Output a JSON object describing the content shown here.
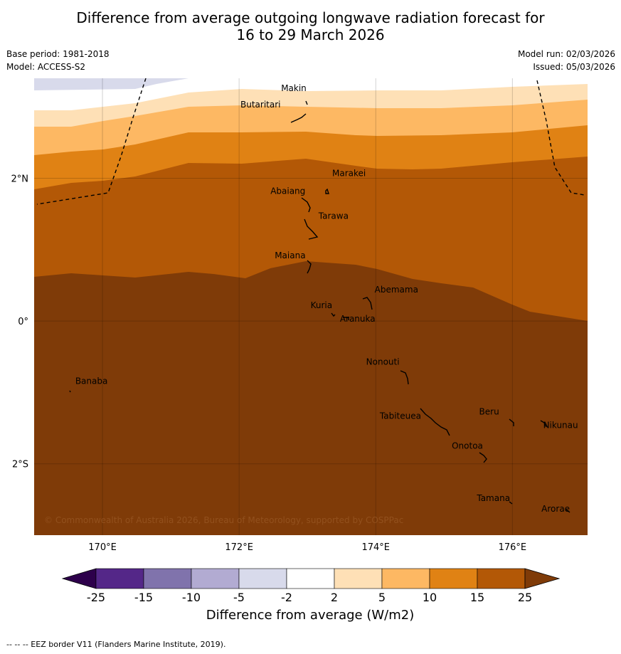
{
  "title_line1": "Difference from average outgoing longwave radiation forecast for",
  "title_line2": "16 to 29 March 2026",
  "base_period": "Base period: 1981-2018",
  "model": "Model: ACCESS-S2",
  "model_run": "Model run: 02/03/2026",
  "issued": "Issued: 05/03/2026",
  "copyright": "© Commonwealth of Australia 2026, Bureau of Meteorology, supported by COSPPac",
  "colorbar_label": "Difference from average (W/m2)",
  "footer": "--  --  -- EEZ border V11 (Flanders Marine Institute, 2019).",
  "map": {
    "lon_range": [
      169,
      177.1
    ],
    "lat_range": [
      -3.0,
      3.4
    ],
    "lon_ticks": [
      {
        "value": 170,
        "label": "170°E"
      },
      {
        "value": 172,
        "label": "172°E"
      },
      {
        "value": 174,
        "label": "174°E"
      },
      {
        "value": 176,
        "label": "176°E"
      }
    ],
    "lat_ticks": [
      {
        "value": 2,
        "label": "2°N"
      },
      {
        "value": 0,
        "label": "0°"
      },
      {
        "value": -2,
        "label": "2°S"
      }
    ]
  },
  "islands": [
    {
      "name": "Makin",
      "lon": 173.0,
      "lat": 3.22
    },
    {
      "name": "Butaritari",
      "lon": 172.8,
      "lat": 3.07
    },
    {
      "name": "Marakei",
      "lon": 173.3,
      "lat": 2.0
    },
    {
      "name": "Abaiang",
      "lon": 173.0,
      "lat": 1.85
    },
    {
      "name": "Tarawa",
      "lon": 173.1,
      "lat": 1.45
    },
    {
      "name": "Maiana",
      "lon": 173.0,
      "lat": 0.92
    },
    {
      "name": "Abemama",
      "lon": 173.9,
      "lat": 0.4
    },
    {
      "name": "Kuria",
      "lon": 173.4,
      "lat": 0.22
    },
    {
      "name": "Aranuka",
      "lon": 173.6,
      "lat": 0.17
    },
    {
      "name": "Nonouti",
      "lon": 174.4,
      "lat": -0.65
    },
    {
      "name": "Banaba",
      "lon": 169.55,
      "lat": -0.86
    },
    {
      "name": "Tabiteuea",
      "lon": 174.85,
      "lat": -1.35
    },
    {
      "name": "Beru",
      "lon": 175.95,
      "lat": -1.33
    },
    {
      "name": "Nikunau",
      "lon": 176.45,
      "lat": -1.35
    },
    {
      "name": "Onotoa",
      "lon": 175.55,
      "lat": -1.8
    },
    {
      "name": "Tamana",
      "lon": 176.0,
      "lat": -2.5
    },
    {
      "name": "Arorae",
      "lon": 176.8,
      "lat": -2.64
    }
  ],
  "colors": {
    "-25": "#2d004b",
    "-20": "#542788",
    "-12.5": "#8073ac",
    "-7.5": "#b2abd2",
    "-3.5": "#d8daeb",
    "0": "#ffffff",
    "3.5": "#fee0b6",
    "7.5": "#fdb863",
    "12.5": "#e08214",
    "20": "#b35806",
    "25": "#7f3b08"
  },
  "colorbar_ticks": [
    "-25",
    "-15",
    "-10",
    "-5",
    "-2",
    "2",
    "5",
    "10",
    "15",
    "25"
  ],
  "colorbar_bins": [
    {
      "from": "-25",
      "to": "-15",
      "color": "#542788"
    },
    {
      "from": "-15",
      "to": "-10",
      "color": "#8073ac"
    },
    {
      "from": "-10",
      "to": "-5",
      "color": "#b2abd2"
    },
    {
      "from": "-5",
      "to": "-2",
      "color": "#d8daeb"
    },
    {
      "from": "-2",
      "to": "2",
      "color": "#ffffff"
    },
    {
      "from": "2",
      "to": "5",
      "color": "#fee0b6"
    },
    {
      "from": "5",
      "to": "10",
      "color": "#fdb863"
    },
    {
      "from": "10",
      "to": "15",
      "color": "#e08214"
    },
    {
      "from": "15",
      "to": "25",
      "color": "#b35806"
    }
  ],
  "colorbar_ext": {
    "low": "#2d004b",
    "high": "#7f3b08"
  }
}
